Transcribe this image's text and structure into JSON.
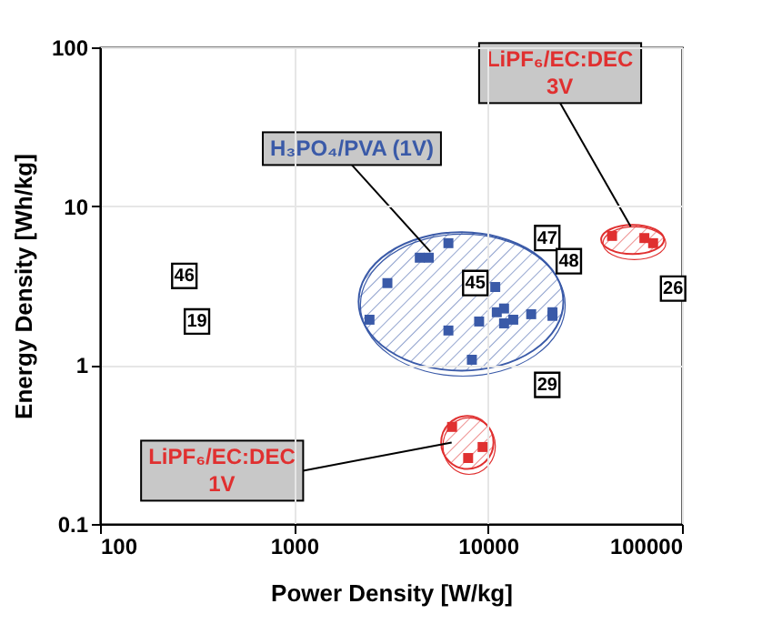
{
  "chart_data": {
    "type": "scatter",
    "xlabel": "Power Density [W/kg]",
    "ylabel": "Energy Density [Wh/kg]",
    "log": "xy",
    "grid": true,
    "legend": false,
    "marker": "square",
    "xlim": [
      100,
      100000
    ],
    "xticks": [
      100,
      1000,
      10000,
      100000
    ],
    "ylim": [
      0.1,
      100
    ],
    "yticks": [
      0.1,
      1,
      10,
      100
    ],
    "series": [
      {
        "name": "H₃PO₄/PVA (1V)",
        "color": "#3a5aa8",
        "x": [
          2450,
          6250,
          4450,
          4950,
          3030,
          10900,
          11100,
          12100,
          12100,
          13500,
          16700,
          21500,
          21500,
          9000,
          6250,
          8260
        ],
        "values": [
          1.93,
          5.85,
          4.74,
          4.74,
          3.28,
          3.1,
          2.15,
          2.27,
          1.83,
          1.93,
          2.09,
          2.15,
          2.04,
          1.88,
          1.65,
          1.08
        ]
      },
      {
        "name": "LiPF₆/EC:DEC 3V",
        "color": "#e03030",
        "x": [
          43600,
          64000,
          71000
        ],
        "values": [
          6.5,
          6.3,
          5.85
        ]
      },
      {
        "name": "LiPF₆/EC:DEC 1V",
        "color": "#e03030",
        "x": [
          6530,
          9380,
          7900
        ],
        "values": [
          0.408,
          0.305,
          0.26
        ]
      },
      {
        "name": "46",
        "color": "#000000",
        "x": [
          272
        ],
        "values": [
          3.64
        ]
      },
      {
        "name": "19",
        "color": "#000000",
        "x": [
          316
        ],
        "values": [
          1.88
        ]
      },
      {
        "name": "45",
        "color": "#000000",
        "x": [
          8600
        ],
        "values": [
          3.28
        ]
      },
      {
        "name": "47",
        "color": "#000000",
        "x": [
          20200
        ],
        "values": [
          6.3
        ]
      },
      {
        "name": "48",
        "color": "#000000",
        "x": [
          26100
        ],
        "values": [
          4.5
        ]
      },
      {
        "name": "26",
        "color": "#000000",
        "x": [
          90000
        ],
        "values": [
          3.03
        ]
      },
      {
        "name": "29",
        "color": "#000000",
        "x": [
          20200
        ],
        "values": [
          0.75
        ]
      }
    ]
  }
}
